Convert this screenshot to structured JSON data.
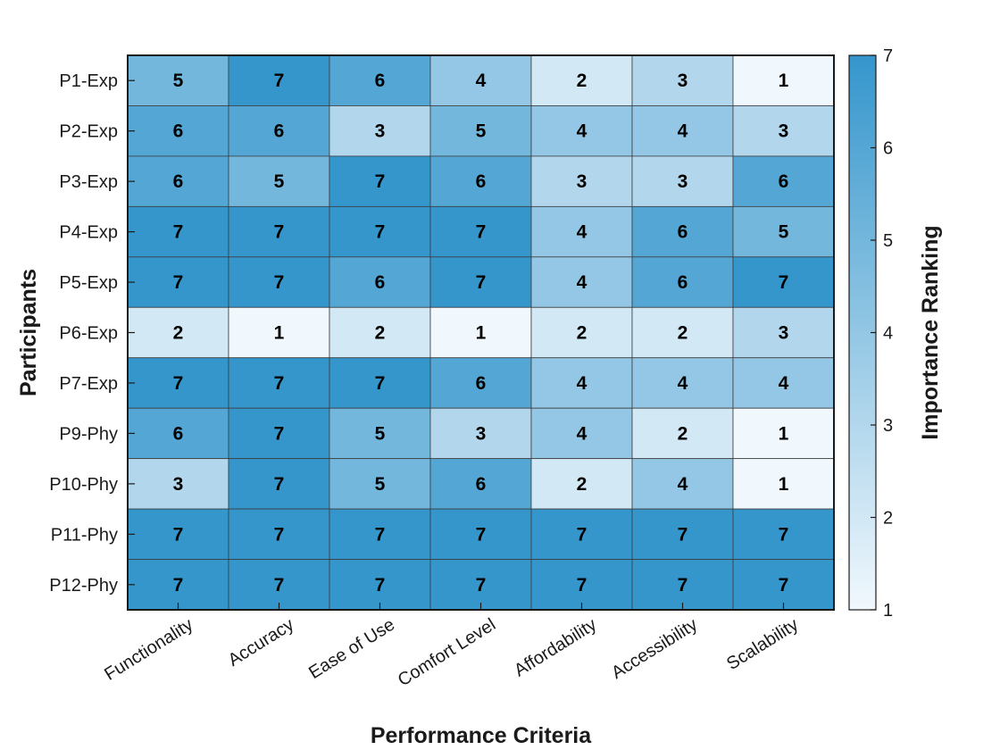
{
  "chart_data": {
    "type": "heatmap",
    "title": "",
    "xlabel": "Performance Criteria",
    "ylabel": "Participants",
    "colorbar_label": "Importance Ranking",
    "x_categories": [
      "Functionality",
      "Accuracy",
      "Ease of Use",
      "Comfort Level",
      "Affordability",
      "Accessibility",
      "Scalability"
    ],
    "y_categories": [
      "P1-Exp",
      "P2-Exp",
      "P3-Exp",
      "P4-Exp",
      "P5-Exp",
      "P6-Exp",
      "P7-Exp",
      "P9-Phy",
      "P10-Phy",
      "P11-Phy",
      "P12-Phy"
    ],
    "values": [
      [
        5,
        7,
        6,
        4,
        2,
        3,
        1
      ],
      [
        6,
        6,
        3,
        5,
        4,
        4,
        3
      ],
      [
        6,
        5,
        7,
        6,
        3,
        3,
        6
      ],
      [
        7,
        7,
        7,
        7,
        4,
        6,
        5
      ],
      [
        7,
        7,
        6,
        7,
        4,
        6,
        7
      ],
      [
        2,
        1,
        2,
        1,
        2,
        2,
        3
      ],
      [
        7,
        7,
        7,
        6,
        4,
        4,
        4
      ],
      [
        6,
        7,
        5,
        3,
        4,
        2,
        1
      ],
      [
        3,
        7,
        5,
        6,
        2,
        4,
        1
      ],
      [
        7,
        7,
        7,
        7,
        7,
        7,
        7
      ],
      [
        7,
        7,
        7,
        7,
        7,
        7,
        7
      ]
    ],
    "colorbar_range": [
      1,
      7
    ],
    "colorbar_ticks": [
      "1",
      "2",
      "3",
      "4",
      "5",
      "6",
      "7"
    ],
    "colormap": {
      "low": "#f1f8fd",
      "high": "#3596cc"
    },
    "grid": true,
    "legend": "colorbar-right"
  }
}
